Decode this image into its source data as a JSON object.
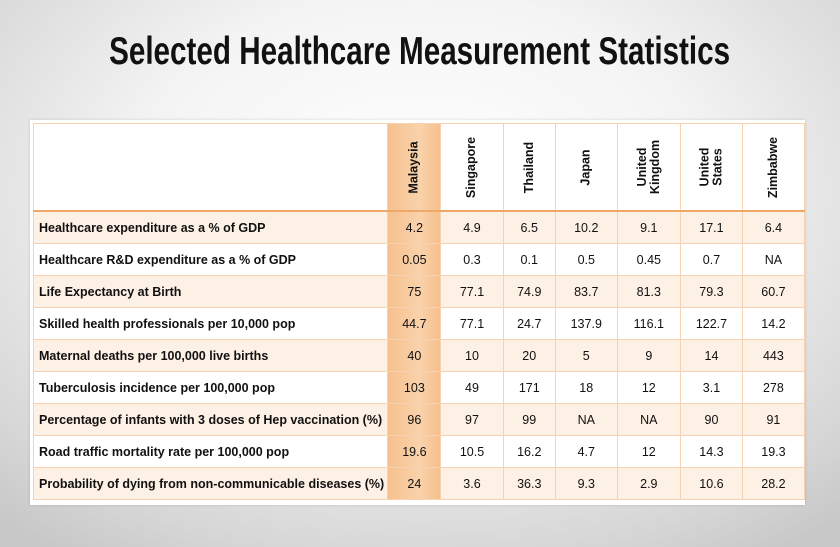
{
  "title": "Selected Healthcare Measurement Statistics",
  "colors": {
    "highlight": "#f7c493",
    "row_alt": "#fdf0e4",
    "border": "#f6d2b0"
  },
  "chart_data": {
    "type": "table",
    "title": "Selected Healthcare Measurement Statistics",
    "highlighted_column": "Malaysia",
    "columns": [
      "Malaysia",
      "Singapore",
      "Thailand",
      "Japan",
      "United\nKingdom",
      "United\nStates",
      "Zimbabwe"
    ],
    "rows": [
      {
        "label": "Healthcare expenditure as a % of GDP",
        "values": [
          "4.2",
          "4.9",
          "6.5",
          "10.2",
          "9.1",
          "17.1",
          "6.4"
        ]
      },
      {
        "label": "Healthcare R&D expenditure as a % of GDP",
        "values": [
          "0.05",
          "0.3",
          "0.1",
          "0.5",
          "0.45",
          "0.7",
          "NA"
        ]
      },
      {
        "label": "Life Expectancy at Birth",
        "values": [
          "75",
          "77.1",
          "74.9",
          "83.7",
          "81.3",
          "79.3",
          "60.7"
        ]
      },
      {
        "label": "Skilled health professionals per 10,000 pop",
        "values": [
          "44.7",
          "77.1",
          "24.7",
          "137.9",
          "116.1",
          "122.7",
          "14.2"
        ]
      },
      {
        "label": "Maternal deaths per 100,000 live births",
        "values": [
          "40",
          "10",
          "20",
          "5",
          "9",
          "14",
          "443"
        ]
      },
      {
        "label": "Tuberculosis incidence per 100,000 pop",
        "values": [
          "103",
          "49",
          "171",
          "18",
          "12",
          "3.1",
          "278"
        ]
      },
      {
        "label": "Percentage of infants with 3 doses of Hep vaccination (%)",
        "values": [
          "96",
          "97",
          "99",
          "NA",
          "NA",
          "90",
          "91"
        ]
      },
      {
        "label": "Road traffic mortality rate per 100,000 pop",
        "values": [
          "19.6",
          "10.5",
          "16.2",
          "4.7",
          "12",
          "14.3",
          "19.3"
        ]
      },
      {
        "label": "Probability of dying from non-communicable diseases (%)",
        "values": [
          "24",
          "3.6",
          "36.3",
          "9.3",
          "2.9",
          "10.6",
          "28.2"
        ]
      }
    ]
  }
}
